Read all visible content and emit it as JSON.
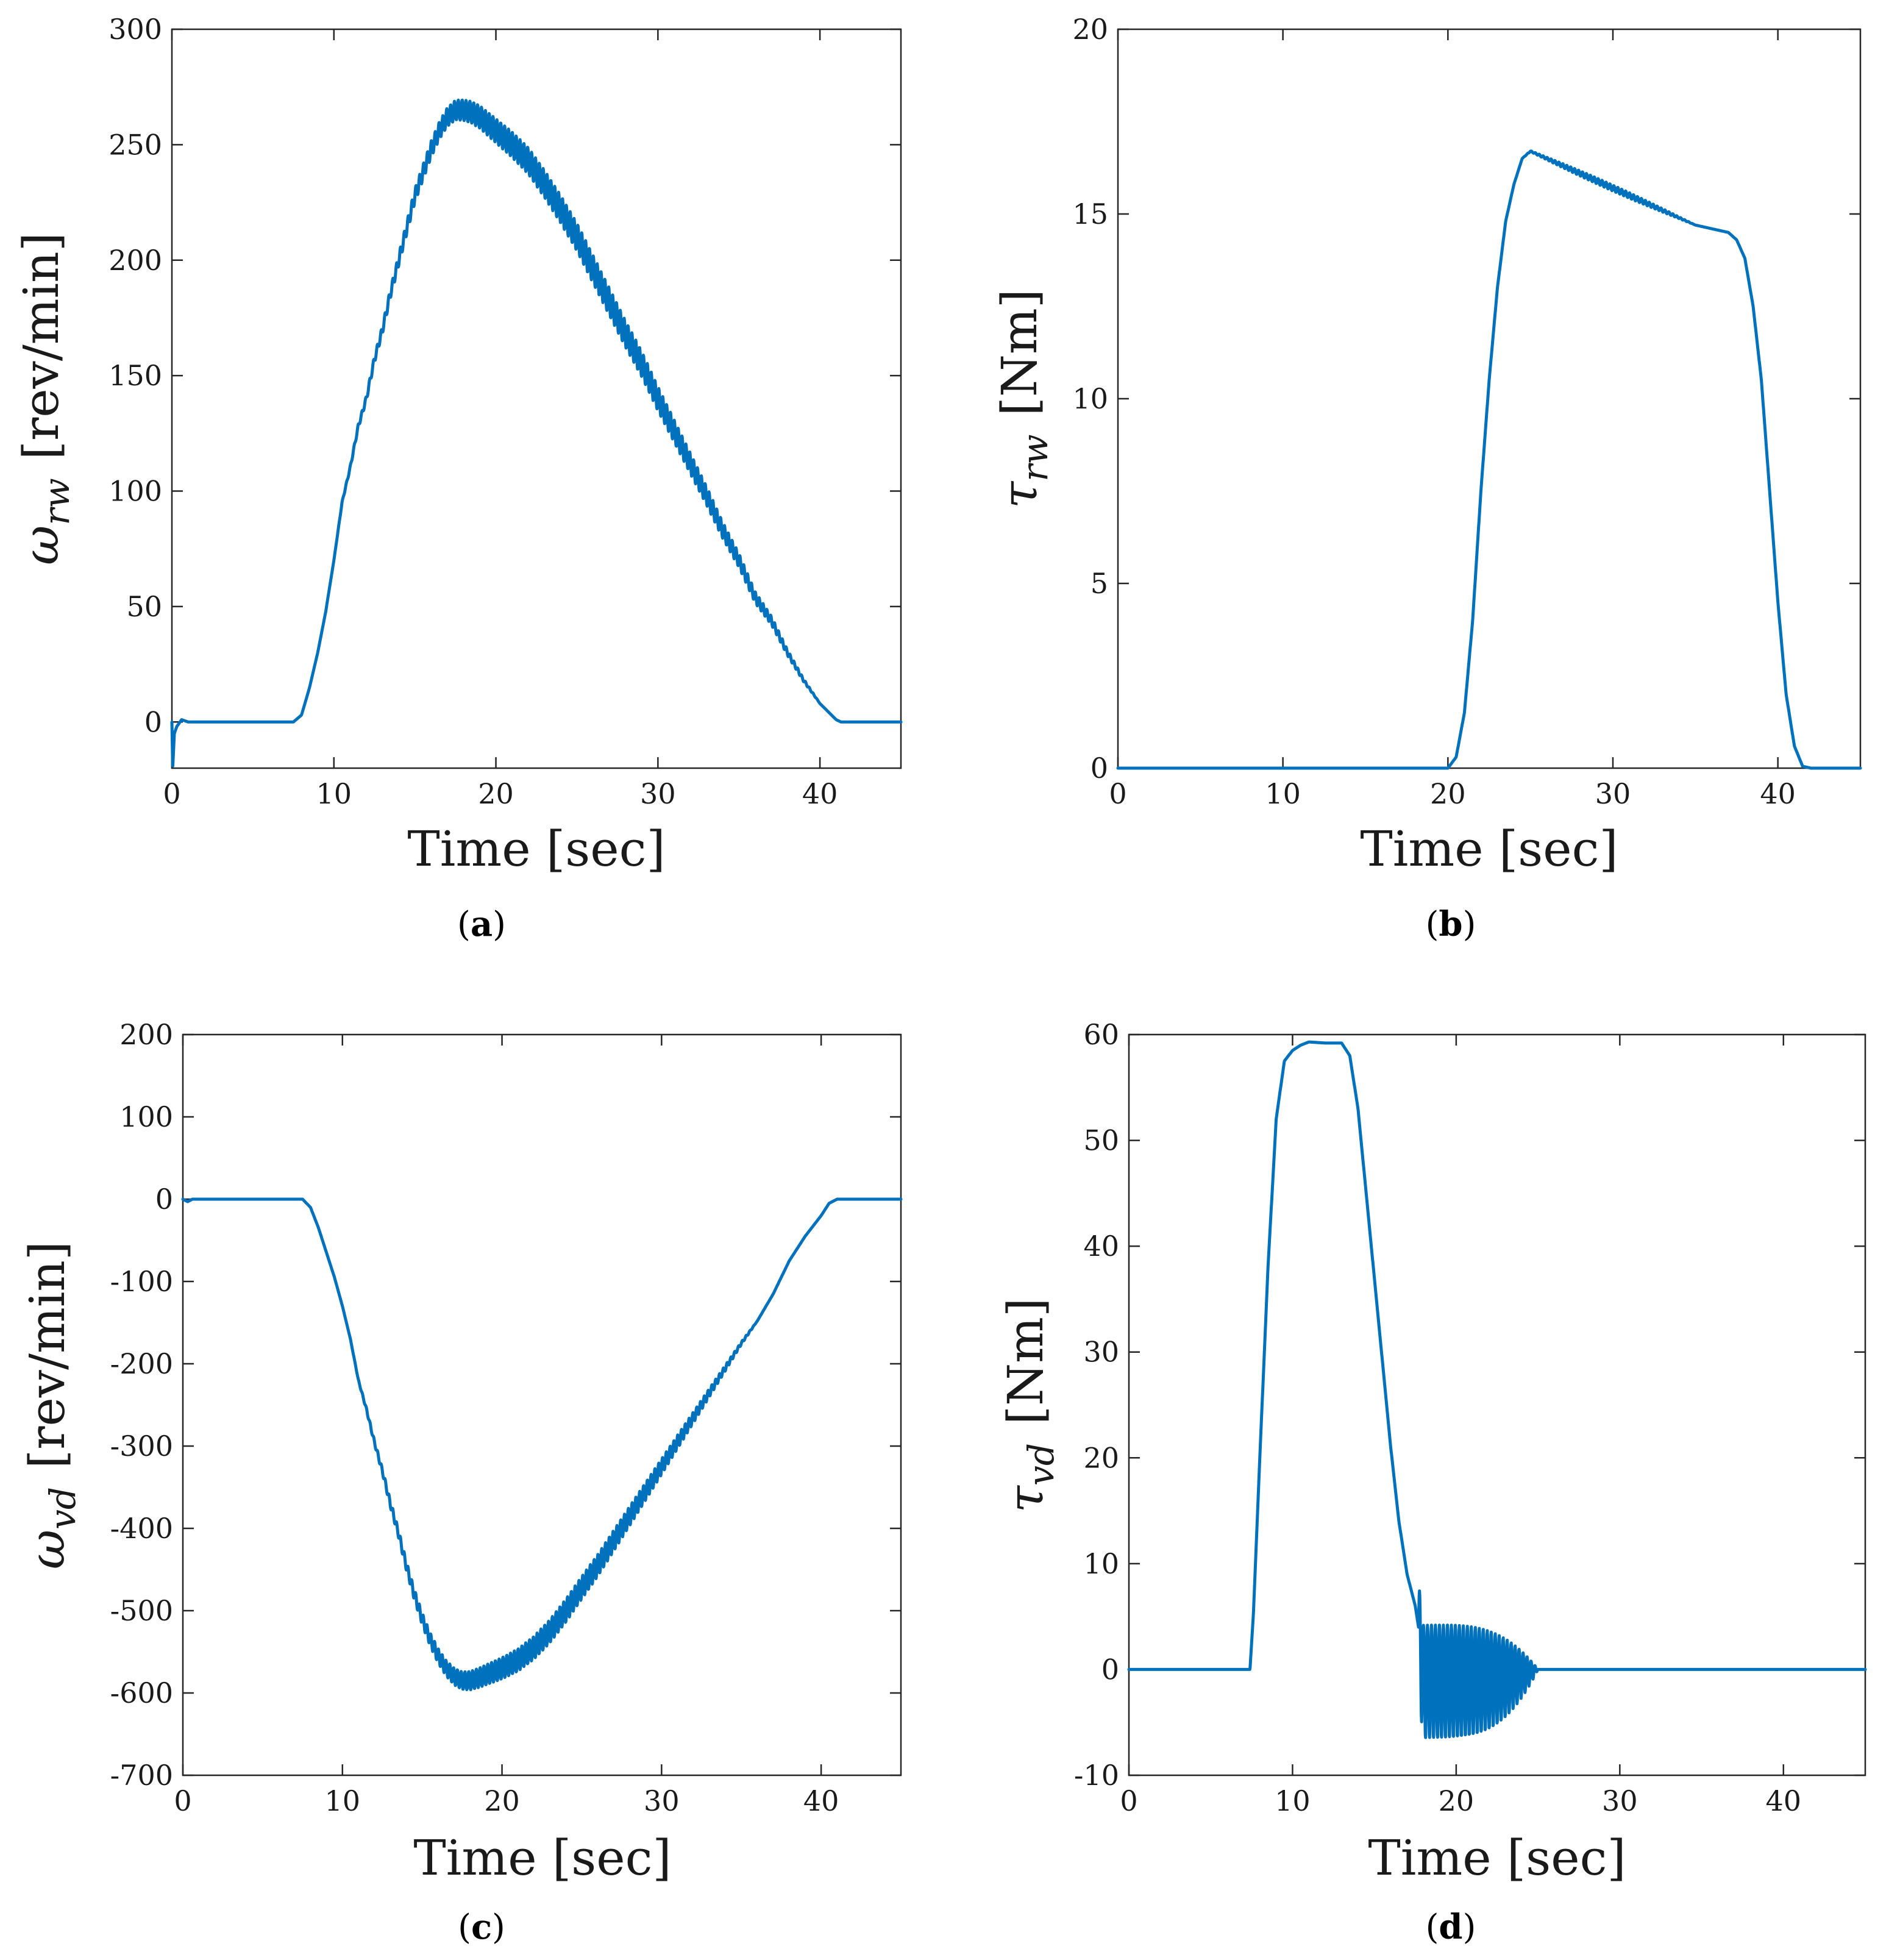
{
  "figure": {
    "series_color": "#0072BD"
  },
  "chart_data": [
    {
      "id": "a",
      "type": "line",
      "caption": "a",
      "xlabel": "Time [sec]",
      "ylabel_symbol": "ω",
      "ylabel_subscript": "rw",
      "ylabel_unit": "[rev/min]",
      "xlim": [
        0,
        45
      ],
      "ylim": [
        -20,
        300
      ],
      "xticks": [
        0,
        10,
        20,
        30,
        40
      ],
      "yticks": [
        0,
        50,
        100,
        150,
        200,
        250,
        300
      ],
      "grid": false,
      "series": [
        {
          "x": [
            0,
            0.05,
            0.15,
            0.3,
            0.6,
            1.0,
            2,
            4,
            6,
            7.5,
            8,
            8.5,
            9,
            9.5,
            10,
            10.5,
            11,
            11.5,
            12,
            12.5,
            13,
            13.5,
            14,
            14.5,
            15,
            15.5,
            16,
            16.5,
            17,
            17.5,
            18,
            18.5,
            19,
            19.5,
            20,
            21,
            22,
            23,
            24,
            25,
            26,
            27,
            28,
            29,
            30,
            31,
            32,
            33,
            34,
            35,
            36,
            37,
            38,
            39,
            40,
            41,
            41.3,
            42,
            43,
            44,
            45
          ],
          "y": [
            0,
            -20,
            -5,
            -2,
            1,
            0,
            0,
            0,
            0,
            0,
            3,
            15,
            30,
            48,
            70,
            95,
            110,
            128,
            140,
            157,
            170,
            186,
            200,
            214,
            228,
            238,
            248,
            256,
            262,
            265,
            265,
            264,
            262,
            259,
            256,
            250,
            243,
            233,
            222,
            210,
            196,
            182,
            168,
            155,
            140,
            126,
            112,
            98,
            83,
            70,
            54,
            44,
            30,
            18,
            8,
            1,
            0,
            0,
            0,
            0,
            0
          ],
          "oscillation_amplitude": 6,
          "oscillation_range": [
            10,
            40
          ]
        }
      ]
    },
    {
      "id": "b",
      "type": "line",
      "caption": "b",
      "xlabel": "Time [sec]",
      "ylabel_symbol": "τ",
      "ylabel_subscript": "rw",
      "ylabel_unit": "[Nm]",
      "xlim": [
        0,
        45
      ],
      "ylim": [
        0,
        20
      ],
      "xticks": [
        0,
        10,
        20,
        30,
        40
      ],
      "yticks": [
        0,
        5,
        10,
        15,
        20
      ],
      "grid": false,
      "series": [
        {
          "x": [
            0,
            20,
            20.5,
            21,
            21.5,
            22,
            22.5,
            23,
            23.5,
            24,
            24.5,
            25,
            26,
            27,
            28,
            29,
            30,
            31,
            32,
            33,
            34,
            35,
            36,
            37,
            37.5,
            38,
            38.5,
            39,
            39.5,
            40,
            40.5,
            41,
            41.5,
            42,
            45
          ],
          "y": [
            0,
            0,
            0.3,
            1.5,
            4,
            7.5,
            10.5,
            13,
            14.8,
            15.8,
            16.5,
            16.7,
            16.5,
            16.3,
            16.1,
            15.9,
            15.7,
            15.5,
            15.3,
            15.1,
            14.9,
            14.7,
            14.6,
            14.5,
            14.3,
            13.8,
            12.5,
            10.5,
            7.5,
            4.5,
            2,
            0.6,
            0.05,
            0,
            0
          ],
          "oscillation_amplitude": 0.08,
          "oscillation_range": [
            24.5,
            35
          ]
        }
      ]
    },
    {
      "id": "c",
      "type": "line",
      "caption": "c",
      "xlabel": "Time [sec]",
      "ylabel_symbol": "ω",
      "ylabel_subscript": "vd",
      "ylabel_unit": "[rev/min]",
      "xlim": [
        0,
        45
      ],
      "ylim": [
        -700,
        200
      ],
      "xticks": [
        0,
        10,
        20,
        30,
        40
      ],
      "yticks": [
        -700,
        -600,
        -500,
        -400,
        -300,
        -200,
        -100,
        0,
        100,
        200
      ],
      "grid": false,
      "series": [
        {
          "x": [
            0,
            0.3,
            0.6,
            1,
            3,
            5,
            7,
            7.5,
            8,
            8.5,
            9,
            9.5,
            10,
            10.5,
            11,
            11.5,
            12,
            12.5,
            13,
            13.5,
            14,
            14.5,
            15,
            15.5,
            16,
            16.5,
            17,
            17.5,
            18,
            18.5,
            19,
            19.5,
            20,
            21,
            22,
            23,
            24,
            25,
            26,
            27,
            28,
            29,
            30,
            31,
            32,
            33,
            34,
            35,
            36,
            37,
            38,
            39,
            40,
            40.5,
            41,
            42,
            43,
            44,
            45
          ],
          "y": [
            0,
            -3,
            0,
            0,
            0,
            0,
            0,
            0,
            -10,
            -35,
            -65,
            -95,
            -130,
            -170,
            -220,
            -255,
            -295,
            -330,
            -370,
            -405,
            -445,
            -480,
            -510,
            -535,
            -555,
            -570,
            -580,
            -585,
            -585,
            -582,
            -578,
            -574,
            -570,
            -560,
            -545,
            -525,
            -500,
            -472,
            -445,
            -415,
            -385,
            -355,
            -325,
            -295,
            -265,
            -235,
            -205,
            -175,
            -148,
            -115,
            -75,
            -45,
            -20,
            -5,
            0,
            0,
            0,
            0,
            0
          ],
          "oscillation_amplitude": 14,
          "oscillation_range": [
            10.5,
            36
          ]
        }
      ]
    },
    {
      "id": "d",
      "type": "line",
      "caption": "d",
      "xlabel": "Time [sec]",
      "ylabel_symbol": "τ",
      "ylabel_subscript": "vd",
      "ylabel_unit": "[Nm]",
      "xlim": [
        0,
        45
      ],
      "ylim": [
        -10,
        60
      ],
      "xticks": [
        0,
        10,
        20,
        30,
        40
      ],
      "yticks": [
        -10,
        0,
        10,
        20,
        30,
        40,
        50,
        60
      ],
      "grid": false,
      "series": [
        {
          "x": [
            0,
            7.4,
            7.6,
            8,
            8.5,
            9,
            9.5,
            10,
            10.5,
            11,
            12,
            13,
            13.5,
            14,
            14.5,
            15,
            15.5,
            16,
            16.5,
            17,
            17.5,
            17.7,
            18,
            25,
            26,
            35,
            45
          ],
          "y": [
            0,
            0,
            5,
            20,
            38,
            52,
            57.5,
            58.5,
            59,
            59.3,
            59.2,
            59.2,
            58,
            53,
            45,
            37,
            29,
            21,
            14,
            9,
            6,
            4,
            0,
            0,
            0,
            0,
            0
          ],
          "burst": {
            "start": 17.7,
            "end": 25,
            "cycles": 30,
            "upper_peak": 4.2,
            "lower_peak": -6.5
          }
        }
      ]
    }
  ]
}
